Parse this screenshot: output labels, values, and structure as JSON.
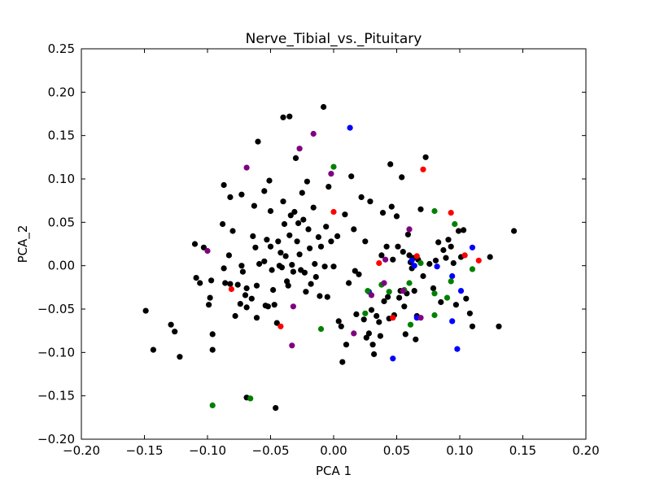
{
  "chart_data": {
    "type": "scatter",
    "title": "Nerve_Tibial_vs._Pituitary",
    "xlabel": "PCA 1",
    "ylabel": "PCA_2",
    "xlim": [
      -0.2,
      0.2
    ],
    "ylim": [
      -0.2,
      0.25
    ],
    "xticks": [
      "−0.20",
      "−0.15",
      "−0.10",
      "−0.05",
      "0.00",
      "0.05",
      "0.10",
      "0.15",
      "0.20"
    ],
    "yticks": [
      "−0.20",
      "−0.15",
      "−0.10",
      "−0.05",
      "0.00",
      "0.05",
      "0.10",
      "0.15",
      "0.20",
      "0.25"
    ],
    "grid": false,
    "colors": {
      "black": "#000000",
      "blue": "#0000ff",
      "red": "#ff0000",
      "green": "#008000",
      "purple": "#800080"
    },
    "series": [
      {
        "color": "black",
        "points": [
          [
            -0.149,
            -0.052
          ],
          [
            -0.143,
            -0.097
          ],
          [
            -0.129,
            -0.068
          ],
          [
            -0.126,
            -0.076
          ],
          [
            -0.122,
            -0.105
          ],
          [
            -0.11,
            0.025
          ],
          [
            -0.109,
            -0.014
          ],
          [
            -0.106,
            -0.02
          ],
          [
            -0.103,
            0.021
          ],
          [
            -0.099,
            -0.045
          ],
          [
            -0.098,
            -0.037
          ],
          [
            -0.097,
            -0.017
          ],
          [
            -0.096,
            -0.079
          ],
          [
            -0.096,
            -0.097
          ],
          [
            -0.088,
            0.048
          ],
          [
            -0.087,
            0.093
          ],
          [
            -0.087,
            -0.003
          ],
          [
            -0.086,
            -0.02
          ],
          [
            -0.083,
            0.012
          ],
          [
            -0.082,
            0.079
          ],
          [
            -0.082,
            -0.021
          ],
          [
            -0.08,
            0.04
          ],
          [
            -0.078,
            -0.058
          ],
          [
            -0.076,
            -0.022
          ],
          [
            -0.074,
            -0.044
          ],
          [
            -0.073,
            0.082
          ],
          [
            -0.073,
            0.0
          ],
          [
            -0.072,
            -0.007
          ],
          [
            -0.07,
            -0.034
          ],
          [
            -0.069,
            -0.026
          ],
          [
            -0.069,
            -0.048
          ],
          [
            -0.065,
            -0.038
          ],
          [
            -0.064,
            0.034
          ],
          [
            -0.063,
            0.069
          ],
          [
            -0.062,
            0.021
          ],
          [
            -0.061,
            -0.06
          ],
          [
            -0.061,
            -0.023
          ],
          [
            -0.06,
            0.143
          ],
          [
            -0.059,
            0.002
          ],
          [
            -0.055,
            0.086
          ],
          [
            -0.055,
            0.005
          ],
          [
            -0.054,
            -0.046
          ],
          [
            -0.053,
            0.03
          ],
          [
            -0.052,
            -0.047
          ],
          [
            -0.051,
            0.098
          ],
          [
            -0.05,
            0.063
          ],
          [
            -0.05,
            0.022
          ],
          [
            -0.049,
            -0.005
          ],
          [
            -0.048,
            -0.028
          ],
          [
            -0.047,
            -0.045
          ],
          [
            -0.045,
            -0.066
          ],
          [
            -0.044,
            0.028
          ],
          [
            -0.043,
            0.0
          ],
          [
            -0.042,
            0.015
          ],
          [
            -0.041,
            -0.002
          ],
          [
            -0.04,
            0.171
          ],
          [
            -0.04,
            0.074
          ],
          [
            -0.039,
            0.048
          ],
          [
            -0.038,
            0.011
          ],
          [
            -0.037,
            -0.018
          ],
          [
            -0.036,
            -0.023
          ],
          [
            -0.035,
            0.172
          ],
          [
            -0.035,
            0.035
          ],
          [
            -0.034,
            0.058
          ],
          [
            -0.033,
            0.001
          ],
          [
            -0.032,
            -0.007
          ],
          [
            -0.031,
            0.062
          ],
          [
            -0.03,
            0.124
          ],
          [
            -0.029,
            0.028
          ],
          [
            -0.028,
            0.049
          ],
          [
            -0.027,
            0.013
          ],
          [
            -0.026,
            -0.005
          ],
          [
            -0.025,
            0.084
          ],
          [
            -0.024,
            0.053
          ],
          [
            -0.023,
            -0.008
          ],
          [
            -0.022,
            -0.03
          ],
          [
            -0.021,
            0.097
          ],
          [
            -0.02,
            0.042
          ],
          [
            -0.019,
            0.02
          ],
          [
            -0.018,
            -0.021
          ],
          [
            -0.016,
            0.067
          ],
          [
            -0.015,
            0.002
          ],
          [
            -0.014,
            -0.013
          ],
          [
            -0.012,
            0.033
          ],
          [
            -0.011,
            -0.035
          ],
          [
            -0.01,
            0.022
          ],
          [
            -0.008,
            0.183
          ],
          [
            -0.007,
            -0.001
          ],
          [
            -0.006,
            0.045
          ],
          [
            -0.005,
            -0.036
          ],
          [
            -0.004,
            0.091
          ],
          [
            -0.002,
            0.028
          ],
          [
            0.0,
            -0.001
          ],
          [
            0.003,
            0.034
          ],
          [
            0.004,
            -0.064
          ],
          [
            0.006,
            -0.07
          ],
          [
            0.007,
            -0.111
          ],
          [
            0.009,
            0.059
          ],
          [
            0.01,
            -0.091
          ],
          [
            0.012,
            -0.02
          ],
          [
            0.014,
            0.103
          ],
          [
            0.016,
            0.042
          ],
          [
            0.017,
            -0.006
          ],
          [
            0.018,
            -0.056
          ],
          [
            0.02,
            -0.01
          ],
          [
            0.022,
            0.079
          ],
          [
            0.024,
            -0.062
          ],
          [
            0.025,
            0.028
          ],
          [
            0.026,
            -0.083
          ],
          [
            0.028,
            -0.078
          ],
          [
            0.029,
            0.074
          ],
          [
            0.03,
            -0.051
          ],
          [
            0.031,
            -0.091
          ],
          [
            0.032,
            -0.102
          ],
          [
            0.034,
            -0.058
          ],
          [
            0.036,
            -0.065
          ],
          [
            0.037,
            -0.081
          ],
          [
            0.038,
            0.012
          ],
          [
            0.039,
            0.061
          ],
          [
            0.04,
            -0.041
          ],
          [
            0.042,
            0.022
          ],
          [
            0.043,
            -0.036
          ],
          [
            0.044,
            -0.061
          ],
          [
            0.045,
            0.117
          ],
          [
            0.046,
            0.068
          ],
          [
            0.047,
            0.007
          ],
          [
            0.048,
            -0.057
          ],
          [
            0.05,
            0.057
          ],
          [
            0.051,
            0.022
          ],
          [
            0.052,
            -0.037
          ],
          [
            0.053,
            -0.029
          ],
          [
            0.054,
            0.102
          ],
          [
            0.055,
            0.016
          ],
          [
            0.056,
            -0.047
          ],
          [
            0.057,
            -0.079
          ],
          [
            0.058,
            -0.032
          ],
          [
            0.059,
            0.036
          ],
          [
            0.06,
            0.012
          ],
          [
            0.061,
            0.004
          ],
          [
            0.062,
            -0.003
          ],
          [
            0.063,
            0.009
          ],
          [
            0.064,
            -0.029
          ],
          [
            0.065,
            -0.085
          ],
          [
            0.066,
            -0.058
          ],
          [
            0.067,
            0.007
          ],
          [
            0.069,
            0.065
          ],
          [
            0.071,
            -0.012
          ],
          [
            0.073,
            0.125
          ],
          [
            0.076,
            0.002
          ],
          [
            0.079,
            -0.026
          ],
          [
            0.081,
            0.006
          ],
          [
            0.083,
            0.027
          ],
          [
            0.085,
            -0.042
          ],
          [
            0.087,
            0.018
          ],
          [
            0.089,
            0.009
          ],
          [
            0.091,
            0.03
          ],
          [
            0.093,
            0.022
          ],
          [
            0.095,
            0.003
          ],
          [
            0.097,
            -0.045
          ],
          [
            0.099,
            0.04
          ],
          [
            0.101,
            0.01
          ],
          [
            0.103,
            0.041
          ],
          [
            0.105,
            -0.038
          ],
          [
            0.108,
            -0.055
          ],
          [
            0.11,
            -0.07
          ],
          [
            0.124,
            0.01
          ],
          [
            0.131,
            -0.07
          ],
          [
            0.143,
            0.04
          ],
          [
            -0.069,
            -0.152
          ],
          [
            -0.046,
            -0.164
          ]
        ]
      },
      {
        "color": "blue",
        "points": [
          [
            0.013,
            0.159
          ],
          [
            0.062,
            0.006
          ],
          [
            0.064,
            0.0
          ],
          [
            0.066,
            -0.06
          ],
          [
            0.082,
            -0.001
          ],
          [
            0.094,
            -0.012
          ],
          [
            0.094,
            -0.064
          ],
          [
            0.098,
            -0.096
          ],
          [
            0.101,
            -0.029
          ],
          [
            0.11,
            0.021
          ],
          [
            0.047,
            -0.107
          ],
          [
            0.028,
            -0.03
          ]
        ]
      },
      {
        "color": "red",
        "points": [
          [
            -0.081,
            -0.027
          ],
          [
            -0.042,
            -0.07
          ],
          [
            0.0,
            0.062
          ],
          [
            0.036,
            0.003
          ],
          [
            0.047,
            -0.06
          ],
          [
            0.071,
            0.111
          ],
          [
            0.066,
            0.011
          ],
          [
            0.093,
            0.061
          ],
          [
            0.104,
            0.012
          ],
          [
            0.115,
            0.006
          ]
        ]
      },
      {
        "color": "green",
        "points": [
          [
            -0.096,
            -0.161
          ],
          [
            -0.066,
            -0.153
          ],
          [
            -0.01,
            -0.073
          ],
          [
            0.0,
            0.114
          ],
          [
            0.025,
            -0.055
          ],
          [
            0.027,
            -0.029
          ],
          [
            0.038,
            -0.022
          ],
          [
            0.044,
            -0.03
          ],
          [
            0.056,
            -0.028
          ],
          [
            0.061,
            -0.068
          ],
          [
            0.06,
            -0.02
          ],
          [
            0.069,
            0.003
          ],
          [
            0.08,
            0.063
          ],
          [
            0.08,
            -0.032
          ],
          [
            0.08,
            -0.057
          ],
          [
            0.09,
            -0.037
          ],
          [
            0.093,
            -0.018
          ],
          [
            0.096,
            0.048
          ],
          [
            0.11,
            -0.004
          ]
        ]
      },
      {
        "color": "purple",
        "points": [
          [
            -0.1,
            0.017
          ],
          [
            -0.069,
            0.113
          ],
          [
            -0.027,
            0.135
          ],
          [
            -0.016,
            0.152
          ],
          [
            -0.002,
            0.106
          ],
          [
            -0.032,
            -0.047
          ],
          [
            -0.033,
            -0.092
          ],
          [
            0.016,
            -0.078
          ],
          [
            0.03,
            -0.034
          ],
          [
            0.04,
            -0.02
          ],
          [
            0.041,
            0.007
          ],
          [
            0.055,
            -0.029
          ],
          [
            0.06,
            0.042
          ],
          [
            0.069,
            -0.06
          ]
        ]
      }
    ]
  }
}
